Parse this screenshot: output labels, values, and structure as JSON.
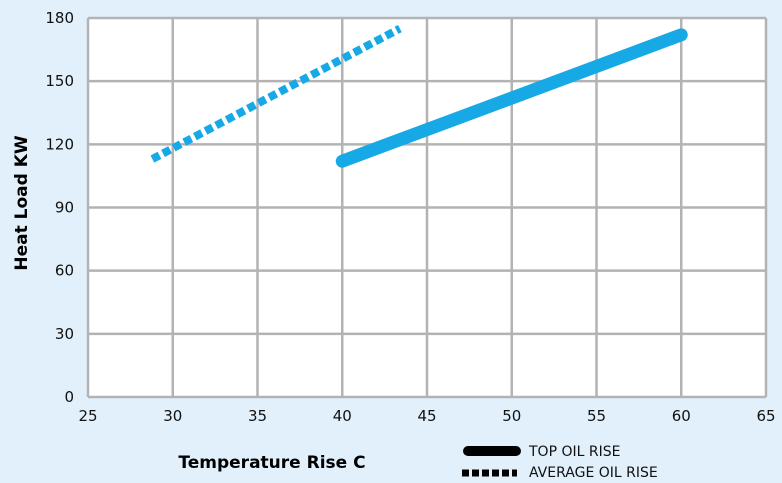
{
  "chart_data": {
    "type": "line",
    "xlabel": "Temperature Rise C",
    "ylabel": "Heat Load KW",
    "xlim": [
      25,
      65
    ],
    "ylim": [
      0,
      180
    ],
    "xticks": [
      25,
      30,
      35,
      40,
      45,
      50,
      55,
      60,
      65
    ],
    "yticks": [
      0,
      30,
      60,
      90,
      120,
      150,
      180
    ],
    "grid": true,
    "series": [
      {
        "name": "TOP OIL RISE",
        "style": "solid",
        "color": "#17a9e6",
        "points": [
          [
            40,
            112
          ],
          [
            60,
            172
          ]
        ]
      },
      {
        "name": "AVERAGE OIL RISE",
        "style": "dotted",
        "color": "#17a9e6",
        "points": [
          [
            28.8,
            113
          ],
          [
            43.4,
            175
          ]
        ]
      }
    ],
    "legend": {
      "placement": "bottom-right",
      "items": [
        "TOP OIL RISE",
        "AVERAGE OIL RISE"
      ]
    }
  },
  "colors": {
    "background": "#e1f0fb",
    "plot_area": "#ffffff",
    "grid": "#b3b3b3",
    "series": "#17a9e6"
  }
}
